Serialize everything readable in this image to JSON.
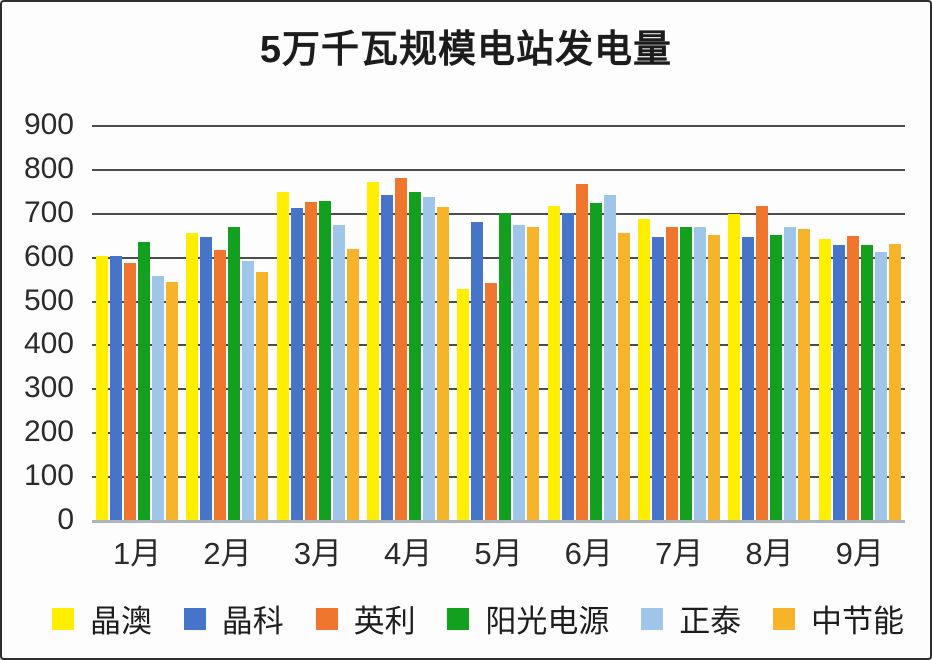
{
  "title": "5万千瓦规模电站发电量",
  "chart_data": {
    "type": "bar",
    "title": "5万千瓦规模电站发电量",
    "categories": [
      "1月",
      "2月",
      "3月",
      "4月",
      "5月",
      "6月",
      "7月",
      "8月",
      "9月"
    ],
    "series": [
      {
        "name": "晶澳",
        "color": "#FFEE00",
        "values": [
          602,
          653,
          748,
          770,
          527,
          716,
          686,
          697,
          640
        ]
      },
      {
        "name": "晶科",
        "color": "#4574C9",
        "values": [
          601,
          645,
          712,
          741,
          678,
          700,
          645,
          645,
          626
        ]
      },
      {
        "name": "英利",
        "color": "#F0762D",
        "values": [
          585,
          615,
          725,
          780,
          540,
          766,
          668,
          716,
          648
        ]
      },
      {
        "name": "阳光电源",
        "color": "#12A01E",
        "values": [
          634,
          668,
          726,
          747,
          700,
          722,
          667,
          650,
          627
        ]
      },
      {
        "name": "正泰",
        "color": "#9FC5E8",
        "values": [
          555,
          590,
          673,
          737,
          673,
          740,
          668,
          668,
          611
        ]
      },
      {
        "name": "中节能",
        "color": "#F7B32A",
        "values": [
          542,
          565,
          617,
          713,
          668,
          655,
          650,
          662,
          628
        ]
      }
    ],
    "ylim": [
      0,
      900
    ],
    "yticks": [
      900,
      800,
      700,
      600,
      500,
      400,
      300,
      200,
      100,
      0
    ],
    "grid": "horizontal",
    "legend_position": "bottom",
    "grid_color": "#4c4c4c",
    "baseline_color": "#aeb6bd"
  }
}
